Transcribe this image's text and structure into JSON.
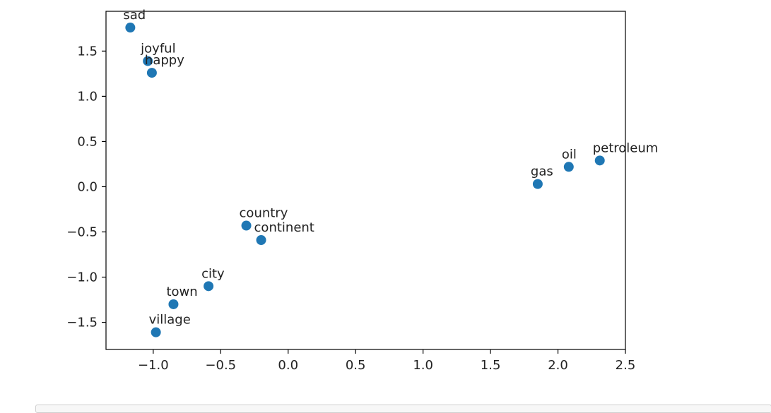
{
  "chart_data": {
    "type": "scatter",
    "title": "",
    "xlabel": "",
    "ylabel": "",
    "xlim": [
      -1.35,
      2.5
    ],
    "ylim": [
      -1.8,
      1.94
    ],
    "xticks": [
      -1.0,
      -0.5,
      0.0,
      0.5,
      1.0,
      1.5,
      2.0,
      2.5
    ],
    "xtick_labels": [
      "−1.0",
      "−0.5",
      "0.0",
      "0.5",
      "1.0",
      "1.5",
      "2.0",
      "2.5"
    ],
    "yticks": [
      -1.5,
      -1.0,
      -0.5,
      0.0,
      0.5,
      1.0,
      1.5
    ],
    "ytick_labels": [
      "−1.5",
      "−1.0",
      "−0.5",
      "0.0",
      "0.5",
      "1.0",
      "1.5"
    ],
    "grid": false,
    "marker_color": "#1f77b4",
    "points": [
      {
        "label": "sad",
        "x": -1.17,
        "y": 1.76
      },
      {
        "label": "joyful",
        "x": -1.04,
        "y": 1.39
      },
      {
        "label": "happy",
        "x": -1.01,
        "y": 1.26
      },
      {
        "label": "country",
        "x": -0.31,
        "y": -0.43
      },
      {
        "label": "continent",
        "x": -0.2,
        "y": -0.59
      },
      {
        "label": "city",
        "x": -0.59,
        "y": -1.1
      },
      {
        "label": "town",
        "x": -0.85,
        "y": -1.3
      },
      {
        "label": "village",
        "x": -0.98,
        "y": -1.61
      },
      {
        "label": "gas",
        "x": 1.85,
        "y": 0.03
      },
      {
        "label": "oil",
        "x": 2.08,
        "y": 0.22
      },
      {
        "label": "petroleum",
        "x": 2.31,
        "y": 0.29
      }
    ]
  }
}
